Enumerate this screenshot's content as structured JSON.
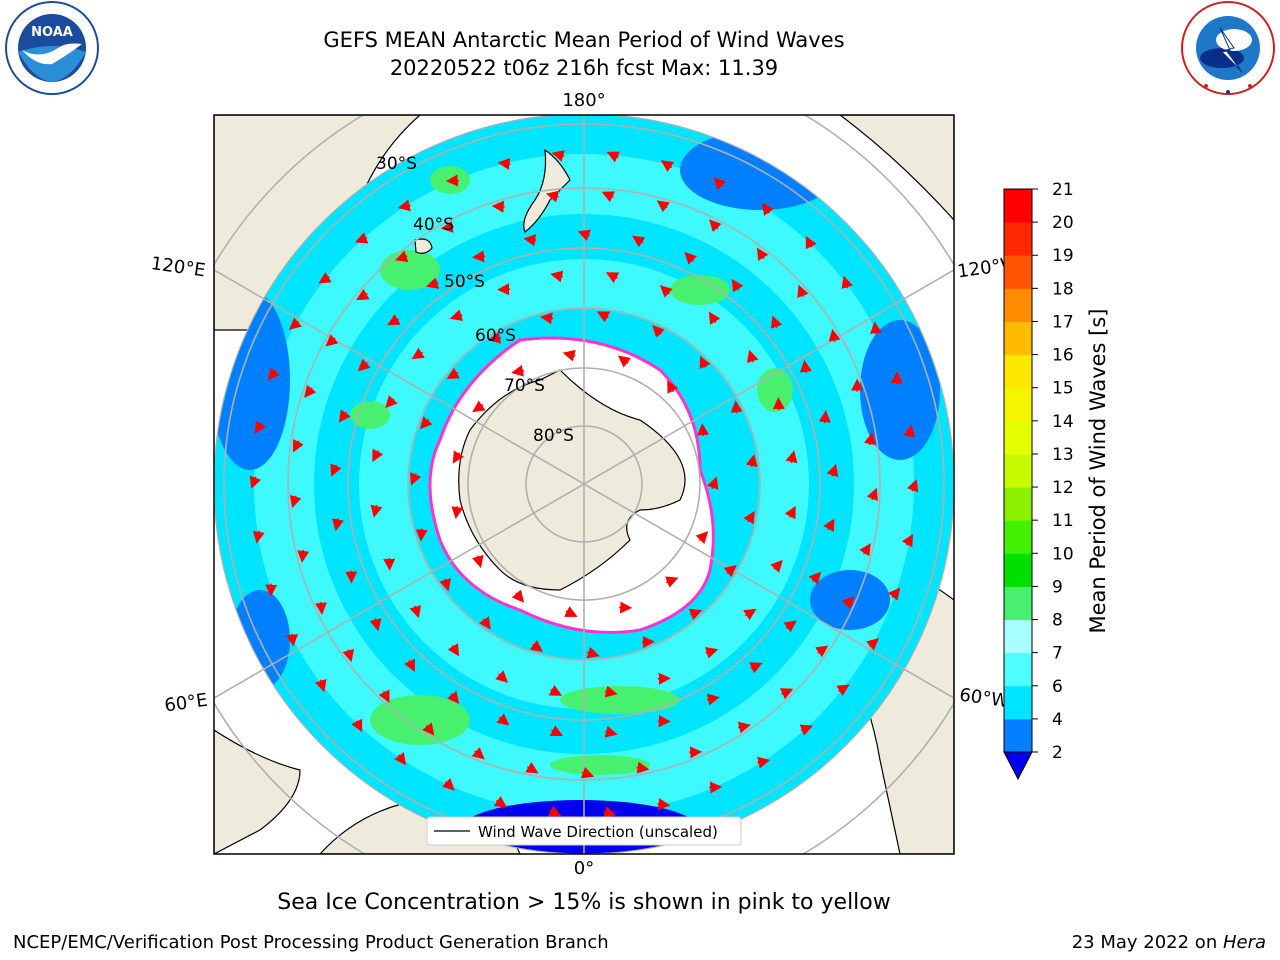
{
  "header": {
    "title_line1": "GEFS MEAN Antarctic Mean Period of Wind Waves",
    "title_line2": "20220522 t06z 216h fcst   Max: 11.39"
  },
  "logos": {
    "left": "NOAA",
    "right": "NATIONAL WEATHER SERVICE"
  },
  "map": {
    "longitude_labels": {
      "top": "180°",
      "bottom": "0°",
      "left_upper": "120°E",
      "right_upper": "120°W",
      "left_lower": "60°E",
      "right_lower": "60°W"
    },
    "latitude_labels": [
      "30°S",
      "40°S",
      "50°S",
      "60°S",
      "70°S",
      "80°S"
    ],
    "legend_label": "Wind Wave Direction (unscaled)",
    "colors": {
      "land": "#efebdc",
      "ice": "#ffffff",
      "arrow": "#ff0000",
      "grid": "#b0b0b0",
      "ice_edge": "#ff33cc"
    }
  },
  "colorbar": {
    "label": "Mean Period of Wind Waves [s]",
    "ticks": [
      "2",
      "4",
      "6",
      "7",
      "8",
      "9",
      "10",
      "11",
      "12",
      "13",
      "14",
      "15",
      "16",
      "17",
      "18",
      "19",
      "20",
      "21"
    ],
    "colors": [
      "#0000ee",
      "#0080ff",
      "#00e5ff",
      "#4dffff",
      "#a8ffff",
      "#48f070",
      "#00e000",
      "#40f000",
      "#8cf000",
      "#c8fa00",
      "#e6ff00",
      "#f5f500",
      "#ffe800",
      "#ffbb00",
      "#ff8c00",
      "#ff5500",
      "#ff2800",
      "#ff0000"
    ],
    "extend": "min"
  },
  "caption": "Sea Ice Concentration > 15% is shown in pink to yellow",
  "footer": {
    "left": "NCEP/EMC/Verification Post Processing Product Generation Branch",
    "right_prefix": "23 May 2022 on ",
    "right_italic": "Hera"
  }
}
